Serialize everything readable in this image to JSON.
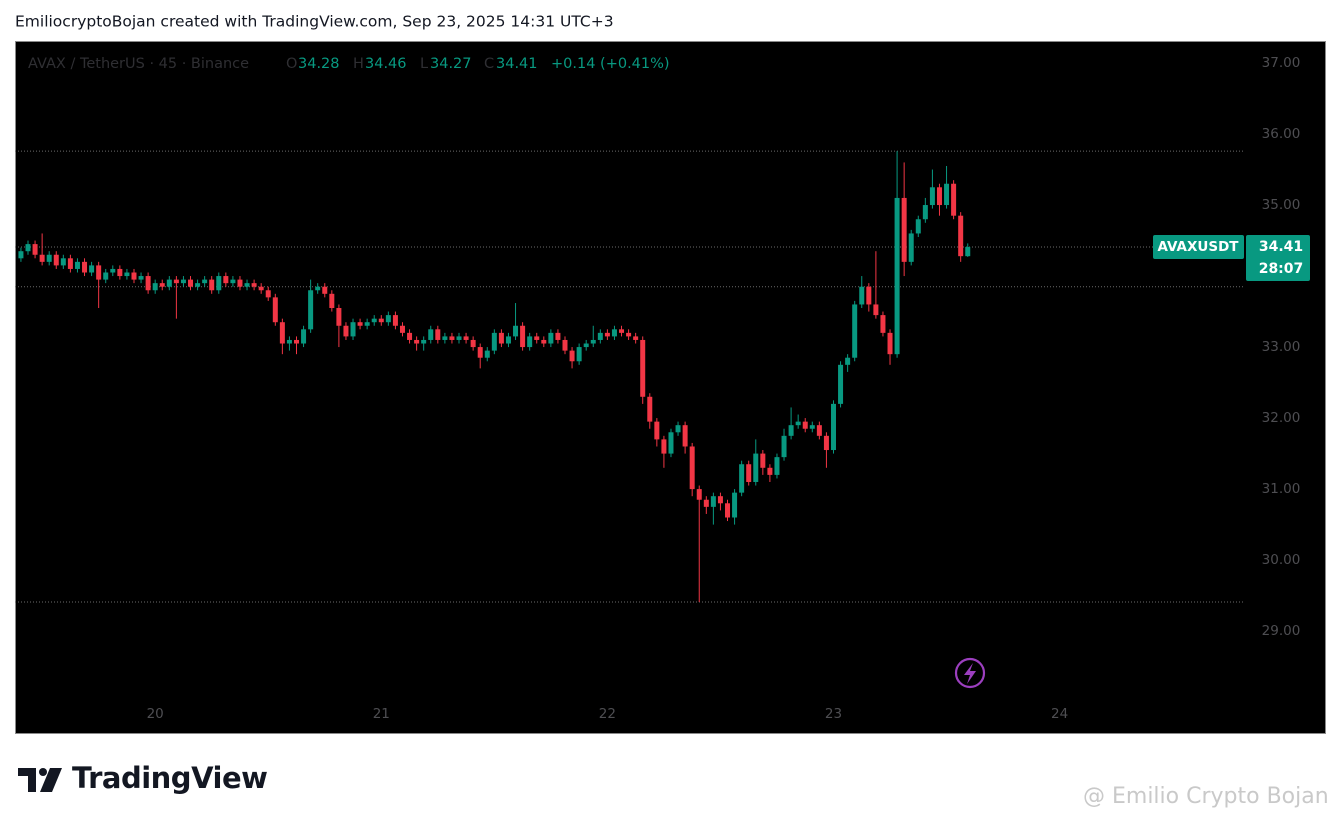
{
  "header": {
    "text": "EmiliocryptoBojan created with TradingView.com, Sep 23, 2025 14:31 UTC+3"
  },
  "chart_data": {
    "type": "candlestick",
    "symbol_info": "AVAX / TetherUS · 45 · Binance",
    "legend": {
      "open_label": "O",
      "open": 34.28,
      "high_label": "H",
      "high": 34.46,
      "low_label": "L",
      "low": 34.27,
      "close_label": "C",
      "close": 34.41,
      "change_text": "+0.14 (+0.41%)"
    },
    "x": [
      19.40625,
      19.4375,
      19.46875,
      19.5,
      19.53125,
      19.5625,
      19.59375,
      19.625,
      19.65625,
      19.6875,
      19.71875,
      19.75,
      19.78125,
      19.8125,
      19.84375,
      19.875,
      19.90625,
      19.9375,
      19.96875,
      20,
      20.03125,
      20.0625,
      20.09375,
      20.125,
      20.15625,
      20.1875,
      20.21875,
      20.25,
      20.28125,
      20.3125,
      20.34375,
      20.375,
      20.40625,
      20.4375,
      20.46875,
      20.5,
      20.53125,
      20.5625,
      20.59375,
      20.625,
      20.65625,
      20.6875,
      20.71875,
      20.75,
      20.78125,
      20.8125,
      20.84375,
      20.875,
      20.90625,
      20.9375,
      20.96875,
      21,
      21.03125,
      21.0625,
      21.09375,
      21.125,
      21.15625,
      21.1875,
      21.21875,
      21.25,
      21.28125,
      21.3125,
      21.34375,
      21.375,
      21.40625,
      21.4375,
      21.46875,
      21.5,
      21.53125,
      21.5625,
      21.59375,
      21.625,
      21.65625,
      21.6875,
      21.71875,
      21.75,
      21.78125,
      21.8125,
      21.84375,
      21.875,
      21.90625,
      21.9375,
      21.96875,
      22,
      22.03125,
      22.0625,
      22.09375,
      22.125,
      22.15625,
      22.1875,
      22.21875,
      22.25,
      22.28125,
      22.3125,
      22.34375,
      22.375,
      22.40625,
      22.4375,
      22.46875,
      22.5,
      22.53125,
      22.5625,
      22.59375,
      22.625,
      22.65625,
      22.6875,
      22.71875,
      22.75,
      22.78125,
      22.8125,
      22.84375,
      22.875,
      22.90625,
      22.9375,
      22.96875,
      23,
      23.03125,
      23.0625,
      23.09375,
      23.125,
      23.15625,
      23.1875,
      23.21875,
      23.25,
      23.28125,
      23.3125,
      23.34375,
      23.375,
      23.40625,
      23.4375,
      23.46875,
      23.5,
      23.53125,
      23.5625,
      23.59375
    ],
    "series": [
      {
        "name": "AVAXUSDT",
        "up_color": "#089981",
        "down_color": "#f23645",
        "open": [
          34.25,
          34.35,
          34.45,
          34.3,
          34.2,
          34.3,
          34.15,
          34.25,
          34.1,
          34.2,
          34.05,
          34.15,
          33.95,
          34.05,
          34.1,
          34.0,
          34.05,
          33.95,
          34.0,
          33.8,
          33.9,
          33.85,
          33.95,
          33.9,
          33.95,
          33.85,
          33.9,
          33.95,
          33.8,
          34.0,
          33.9,
          33.95,
          33.85,
          33.9,
          33.85,
          33.8,
          33.7,
          33.35,
          33.05,
          33.1,
          33.05,
          33.25,
          33.8,
          33.85,
          33.75,
          33.55,
          33.3,
          33.15,
          33.35,
          33.3,
          33.35,
          33.4,
          33.35,
          33.45,
          33.3,
          33.2,
          33.1,
          33.05,
          33.1,
          33.25,
          33.1,
          33.15,
          33.1,
          33.15,
          33.1,
          33.0,
          32.85,
          32.95,
          33.2,
          33.05,
          33.15,
          33.3,
          33.0,
          33.15,
          33.1,
          33.05,
          33.2,
          33.1,
          32.95,
          32.8,
          33.0,
          33.05,
          33.1,
          33.2,
          33.15,
          33.25,
          33.2,
          33.15,
          33.1,
          32.3,
          31.95,
          31.7,
          31.5,
          31.8,
          31.9,
          31.6,
          31.0,
          30.85,
          30.75,
          30.9,
          30.8,
          30.6,
          30.95,
          31.35,
          31.1,
          31.5,
          31.3,
          31.2,
          31.45,
          31.75,
          31.9,
          31.95,
          31.85,
          31.9,
          31.75,
          31.55,
          32.2,
          32.75,
          32.85,
          33.6,
          33.85,
          33.6,
          33.45,
          33.2,
          32.9,
          35.1,
          34.2,
          34.6,
          34.8,
          35.0,
          35.25,
          35.0,
          35.3,
          34.85,
          34.28
        ],
        "high": [
          34.4,
          34.5,
          34.5,
          34.6,
          34.35,
          34.35,
          34.3,
          34.3,
          34.25,
          34.25,
          34.2,
          34.2,
          34.1,
          34.15,
          34.15,
          34.1,
          34.1,
          34.05,
          34.05,
          33.95,
          33.95,
          34.0,
          34.0,
          34.0,
          34.0,
          33.95,
          34.0,
          34.0,
          34.05,
          34.05,
          34.0,
          34.0,
          33.95,
          33.95,
          33.9,
          33.85,
          33.75,
          33.4,
          33.15,
          33.15,
          33.3,
          33.95,
          33.9,
          33.9,
          33.8,
          33.6,
          33.35,
          33.4,
          33.4,
          33.4,
          33.45,
          33.45,
          33.5,
          33.5,
          33.35,
          33.25,
          33.15,
          33.15,
          33.3,
          33.3,
          33.2,
          33.2,
          33.2,
          33.2,
          33.15,
          33.05,
          33.0,
          33.25,
          33.25,
          33.2,
          33.62,
          33.35,
          33.2,
          33.2,
          33.15,
          33.25,
          33.25,
          33.15,
          33.0,
          33.05,
          33.1,
          33.3,
          33.25,
          33.25,
          33.3,
          33.3,
          33.25,
          33.2,
          33.15,
          32.35,
          32.0,
          31.75,
          31.85,
          31.95,
          31.95,
          31.65,
          31.05,
          30.9,
          30.95,
          30.95,
          30.85,
          31.0,
          31.4,
          31.4,
          31.7,
          31.55,
          31.35,
          31.5,
          31.85,
          32.15,
          32.05,
          32.0,
          31.95,
          31.95,
          31.8,
          32.25,
          32.8,
          32.9,
          33.65,
          34.0,
          33.9,
          34.35,
          33.5,
          33.25,
          35.76,
          35.6,
          34.65,
          34.85,
          35.1,
          35.5,
          35.3,
          35.55,
          35.35,
          34.9,
          34.46
        ],
        "low": [
          34.2,
          34.3,
          34.25,
          34.15,
          34.15,
          34.1,
          34.1,
          34.05,
          34.05,
          34.0,
          34.0,
          33.55,
          33.9,
          34.0,
          33.95,
          33.95,
          33.9,
          33.9,
          33.75,
          33.75,
          33.8,
          33.8,
          33.4,
          33.85,
          33.8,
          33.8,
          33.85,
          33.75,
          33.75,
          33.85,
          33.85,
          33.8,
          33.8,
          33.8,
          33.75,
          33.65,
          33.3,
          32.9,
          32.95,
          32.9,
          33.0,
          33.2,
          33.75,
          33.7,
          33.5,
          33.0,
          33.1,
          33.1,
          33.25,
          33.25,
          33.3,
          33.3,
          33.3,
          33.25,
          33.15,
          33.05,
          32.95,
          32.95,
          33.05,
          33.05,
          33.05,
          33.05,
          33.05,
          33.05,
          32.95,
          32.7,
          32.8,
          32.9,
          33.0,
          33.0,
          33.1,
          32.95,
          32.95,
          33.05,
          33.0,
          33.0,
          33.05,
          32.9,
          32.7,
          32.75,
          32.95,
          33.0,
          33.05,
          33.1,
          33.1,
          33.15,
          33.1,
          33.05,
          32.2,
          31.85,
          31.6,
          31.3,
          31.45,
          31.75,
          31.5,
          30.9,
          29.41,
          30.65,
          30.5,
          30.7,
          30.55,
          30.5,
          30.9,
          31.05,
          31.05,
          31.2,
          31.1,
          31.15,
          31.4,
          31.7,
          31.85,
          31.8,
          31.8,
          31.7,
          31.3,
          31.5,
          32.15,
          32.65,
          32.8,
          33.55,
          33.5,
          33.4,
          33.15,
          32.75,
          32.85,
          34.0,
          34.15,
          34.55,
          34.75,
          34.95,
          34.85,
          34.95,
          34.8,
          34.2,
          34.27
        ],
        "close": [
          34.35,
          34.45,
          34.3,
          34.2,
          34.3,
          34.15,
          34.25,
          34.1,
          34.2,
          34.05,
          34.15,
          33.95,
          34.05,
          34.1,
          34.0,
          34.05,
          33.95,
          34.0,
          33.8,
          33.9,
          33.85,
          33.95,
          33.9,
          33.95,
          33.85,
          33.9,
          33.95,
          33.8,
          34.0,
          33.9,
          33.95,
          33.85,
          33.9,
          33.85,
          33.8,
          33.7,
          33.35,
          33.05,
          33.1,
          33.05,
          33.25,
          33.8,
          33.85,
          33.75,
          33.55,
          33.3,
          33.15,
          33.35,
          33.3,
          33.35,
          33.4,
          33.35,
          33.45,
          33.3,
          33.2,
          33.1,
          33.05,
          33.1,
          33.25,
          33.1,
          33.15,
          33.1,
          33.15,
          33.1,
          33.0,
          32.85,
          32.95,
          33.2,
          33.05,
          33.15,
          33.3,
          33.0,
          33.15,
          33.1,
          33.05,
          33.2,
          33.1,
          32.95,
          32.8,
          33.0,
          33.05,
          33.1,
          33.2,
          33.15,
          33.25,
          33.2,
          33.15,
          33.1,
          32.3,
          31.95,
          31.7,
          31.5,
          31.8,
          31.9,
          31.6,
          31.0,
          30.85,
          30.75,
          30.9,
          30.8,
          30.6,
          30.95,
          31.35,
          31.1,
          31.5,
          31.3,
          31.2,
          31.45,
          31.75,
          31.9,
          31.95,
          31.85,
          31.9,
          31.75,
          31.55,
          32.2,
          32.75,
          32.85,
          33.6,
          33.85,
          33.6,
          33.45,
          33.2,
          32.9,
          35.1,
          34.2,
          34.6,
          34.8,
          35.0,
          35.25,
          35.0,
          35.3,
          34.85,
          34.28,
          34.41
        ]
      }
    ],
    "last_price": 34.41,
    "countdown": "28:07",
    "price_lines": [
      35.76,
      34.41,
      33.85,
      29.41
    ],
    "xlim": [
      19.38,
      24.82
    ],
    "ylim": [
      28.03,
      37.31
    ],
    "xticks": [
      20,
      21,
      22,
      23,
      24
    ],
    "yticks": [
      {
        "value": 29,
        "label": "29.00"
      },
      {
        "value": 30,
        "label": "30.00"
      },
      {
        "value": 31,
        "label": "31.00"
      },
      {
        "value": 32,
        "label": "32.00"
      },
      {
        "value": 33,
        "label": "33.00"
      },
      {
        "value": 34,
        "label": "34.00"
      },
      {
        "value": 35,
        "label": "35.00"
      },
      {
        "value": 36,
        "label": "36.00"
      },
      {
        "value": 37,
        "label": "37.00"
      }
    ],
    "grid": false,
    "background": "#000000"
  },
  "footer": {
    "logo": "TradingView",
    "watermark": "@ Emilio Crypto Bojan"
  }
}
